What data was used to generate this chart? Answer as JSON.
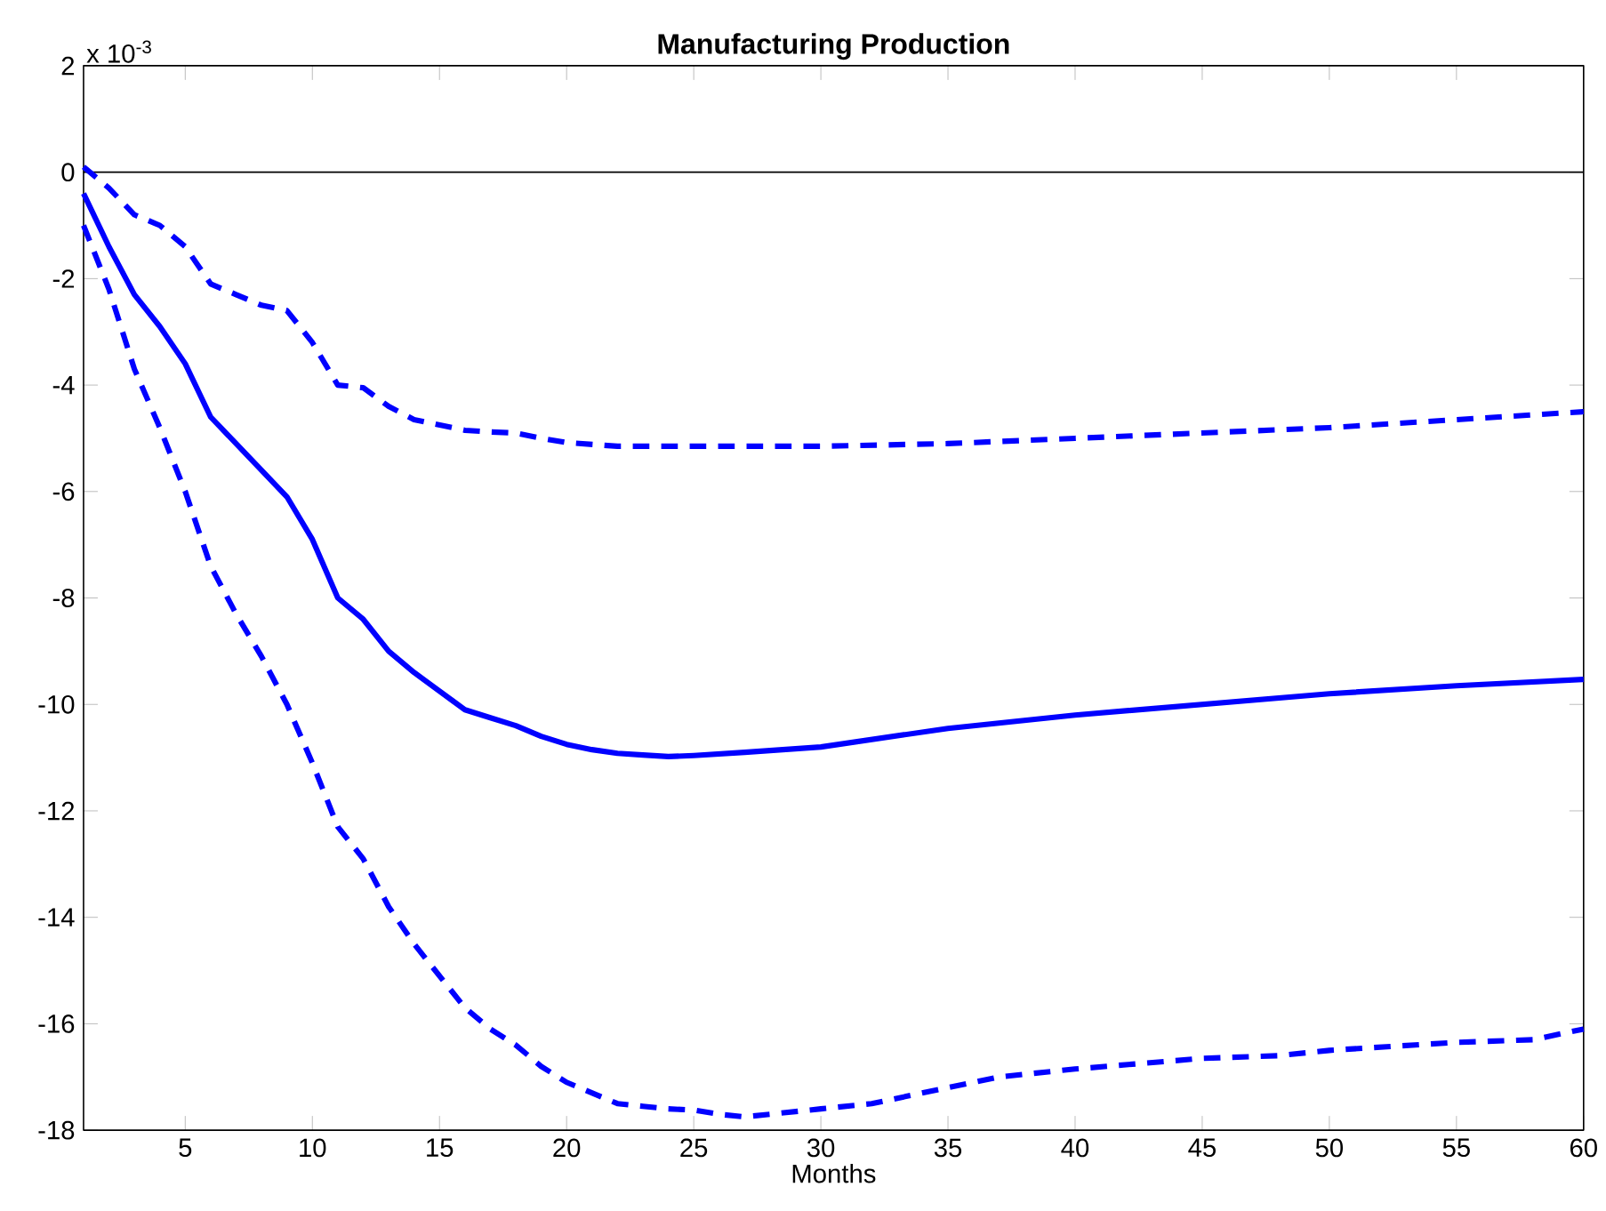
{
  "chart_data": {
    "type": "line",
    "title": "Manufacturing Production",
    "xlabel": "Months",
    "annotations": [
      "x 10$^{-3}$"
    ],
    "xlim": [
      1,
      60
    ],
    "ylim": [
      -18,
      2
    ],
    "xticks": [
      5,
      10,
      15,
      20,
      25,
      30,
      35,
      40,
      45,
      50,
      55,
      60
    ],
    "yticks": [
      -18,
      -16,
      -14,
      -12,
      -10,
      -8,
      -6,
      -4,
      -2,
      0,
      2
    ],
    "ref_lines": [
      {
        "axis": "y",
        "value": 0,
        "color": "#000000",
        "line_style": "solid"
      }
    ],
    "series": [
      {
        "color": "#0000ff",
        "line_style": "solid",
        "x": [
          1,
          2,
          3,
          4,
          5,
          6,
          7,
          8,
          9,
          10,
          11,
          12,
          13,
          14,
          15,
          16,
          17,
          18,
          19,
          20,
          21,
          22,
          23,
          24,
          25,
          27,
          30,
          35,
          40,
          45,
          50,
          55,
          60
        ],
        "values": [
          -0.4,
          -1.4,
          -2.3,
          -2.9,
          -3.6,
          -4.6,
          -5.1,
          -5.6,
          -6.1,
          -6.9,
          -8.0,
          -8.4,
          -9.0,
          -9.4,
          -9.75,
          -10.1,
          -10.25,
          -10.4,
          -10.6,
          -10.75,
          -10.85,
          -10.92,
          -10.95,
          -10.98,
          -10.96,
          -10.9,
          -10.8,
          -10.45,
          -10.2,
          -10.0,
          -9.8,
          -9.65,
          -9.53
        ]
      },
      {
        "color": "#0000ff",
        "line_style": "dashed",
        "x": [
          1,
          2,
          3,
          4,
          5,
          6,
          7,
          8,
          9,
          10,
          11,
          12,
          13,
          14,
          15,
          16,
          17,
          18,
          19,
          20,
          22,
          25,
          30,
          35,
          40,
          45,
          50,
          55,
          60
        ],
        "values": [
          0.1,
          -0.3,
          -0.8,
          -1.0,
          -1.4,
          -2.1,
          -2.3,
          -2.5,
          -2.6,
          -3.2,
          -4.0,
          -4.05,
          -4.4,
          -4.65,
          -4.75,
          -4.85,
          -4.88,
          -4.9,
          -5.0,
          -5.08,
          -5.15,
          -5.15,
          -5.15,
          -5.1,
          -5.0,
          -4.9,
          -4.8,
          -4.65,
          -4.5
        ]
      },
      {
        "color": "#0000ff",
        "line_style": "dashed",
        "x": [
          1,
          2,
          3,
          4,
          5,
          6,
          7,
          8,
          9,
          10,
          11,
          12,
          13,
          14,
          15,
          16,
          17,
          18,
          19,
          20,
          21,
          22,
          23,
          24,
          25,
          26,
          27,
          28,
          30,
          32,
          35,
          37,
          40,
          45,
          48,
          50,
          55,
          58,
          60
        ],
        "values": [
          -1.0,
          -2.2,
          -3.7,
          -4.8,
          -6.0,
          -7.4,
          -8.3,
          -9.1,
          -10.0,
          -11.1,
          -12.3,
          -12.9,
          -13.8,
          -14.5,
          -15.1,
          -15.7,
          -16.1,
          -16.4,
          -16.8,
          -17.1,
          -17.3,
          -17.5,
          -17.55,
          -17.6,
          -17.62,
          -17.7,
          -17.75,
          -17.7,
          -17.6,
          -17.5,
          -17.2,
          -17.0,
          -16.85,
          -16.65,
          -16.6,
          -16.5,
          -16.35,
          -16.3,
          -16.1
        ]
      }
    ]
  }
}
